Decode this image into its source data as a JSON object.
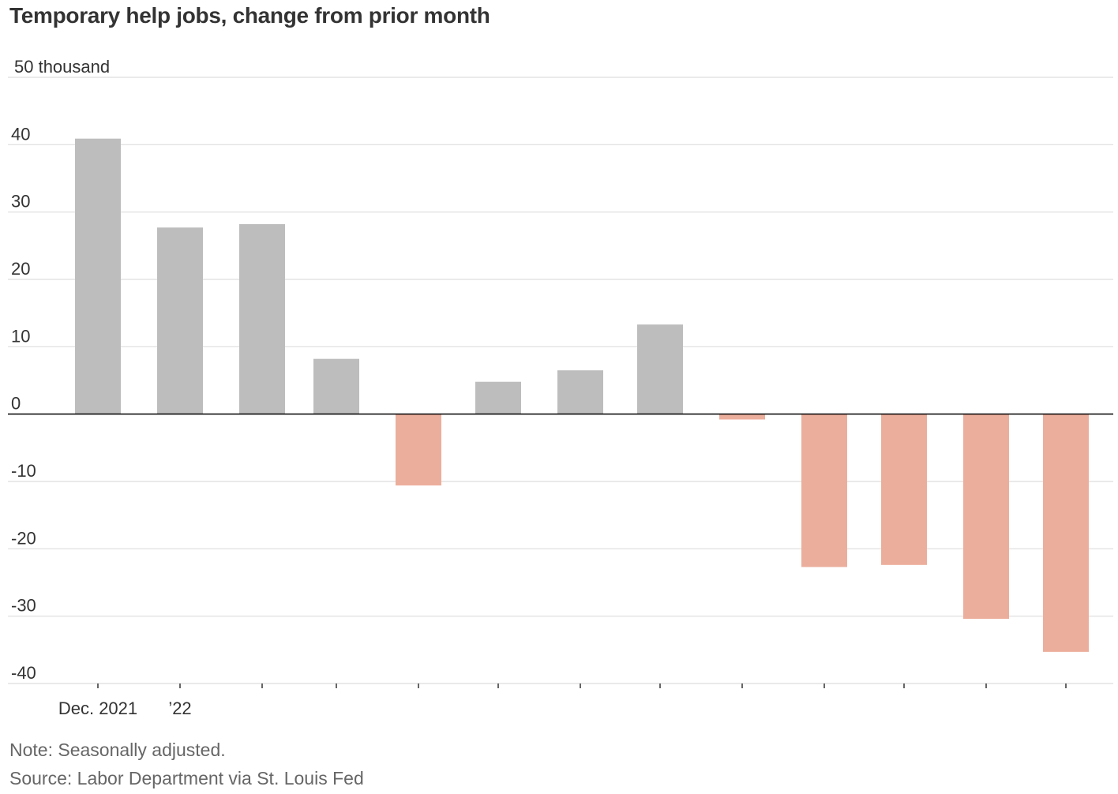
{
  "chart_data": {
    "type": "bar",
    "title": "Temporary help jobs, change from prior month",
    "y_unit_label": "50 thousand",
    "ylim": [
      -40,
      50
    ],
    "yticks": [
      50,
      40,
      30,
      20,
      10,
      0,
      -10,
      -20,
      -30,
      -40
    ],
    "ytick_labels": [
      "",
      "40",
      "30",
      "20",
      "10",
      "0",
      "-10",
      "-20",
      "-30",
      "-40"
    ],
    "categories": [
      "Dec. 2021",
      "’22",
      "",
      "",
      "",
      "",
      "",
      "",
      "",
      "",
      "",
      "",
      ""
    ],
    "values": [
      40.9,
      27.7,
      28.2,
      8.2,
      -10.6,
      4.8,
      6.5,
      13.3,
      -0.8,
      -22.7,
      -22.4,
      -30.4,
      -35.3
    ],
    "grid": true,
    "colors": {
      "positive": "#bdbdbd",
      "negative": "#ecae9c",
      "grid": "#dddddd",
      "zero_line": "#000000"
    }
  },
  "note": "Note: Seasonally adjusted.",
  "source": "Source: Labor Department via St. Louis Fed"
}
